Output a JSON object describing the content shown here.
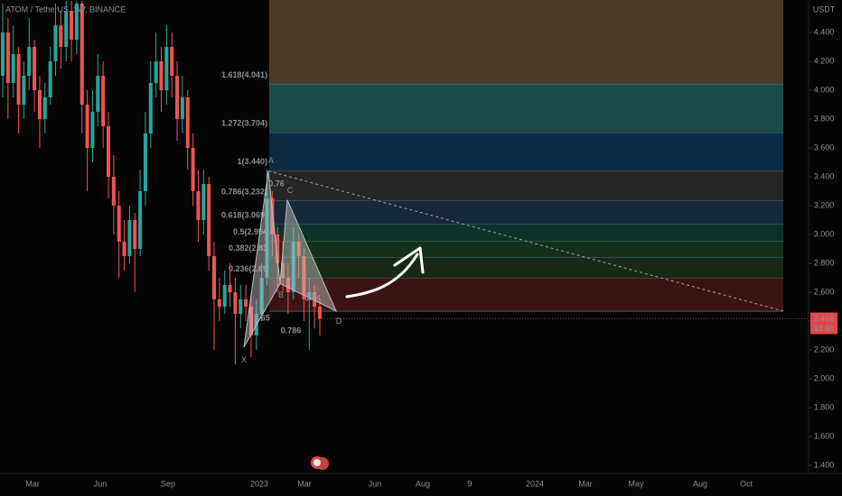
{
  "chart_data": {
    "type": "candlestick",
    "symbol": "ATOM / TetherUS, 1W, BINANCE",
    "currency": "USDT",
    "up_color": "#26a69a",
    "down_color": "#ef5350",
    "open": [
      4.1,
      4.4,
      4.05,
      4.25,
      3.9,
      4.1,
      4.3,
      4.0,
      3.8,
      3.95,
      4.2,
      4.45,
      4.3,
      4.55,
      4.35,
      4.6,
      3.9,
      3.6,
      3.85,
      4.1,
      3.75,
      3.4,
      3.2,
      2.95,
      2.85,
      3.1,
      2.9,
      3.3,
      3.7,
      4.05,
      4.2,
      4.0,
      4.3,
      4.1,
      3.8,
      3.95,
      3.6,
      3.3,
      3.1,
      3.35,
      2.85,
      2.55,
      2.5,
      2.65,
      2.6,
      2.45,
      2.55,
      2.5,
      2.3,
      2.45,
      2.7,
      3.25,
      3.0,
      2.8,
      2.7,
      2.6,
      2.95,
      2.85,
      2.55,
      2.6,
      2.5
    ],
    "high": [
      4.6,
      4.5,
      4.45,
      4.3,
      4.2,
      4.5,
      4.35,
      4.1,
      4.05,
      4.3,
      4.6,
      4.55,
      4.62,
      4.62,
      4.62,
      4.62,
      4.0,
      4.0,
      4.25,
      4.2,
      3.85,
      3.55,
      3.3,
      3.1,
      3.2,
      3.15,
      3.45,
      3.85,
      4.2,
      4.4,
      4.3,
      4.45,
      4.4,
      4.2,
      4.1,
      4.0,
      3.7,
      3.45,
      3.45,
      3.4,
      2.95,
      2.7,
      2.75,
      2.8,
      2.7,
      2.65,
      2.65,
      2.6,
      2.55,
      2.8,
      3.45,
      3.3,
      3.05,
      2.95,
      2.8,
      3.05,
      3.0,
      2.9,
      2.7,
      2.65,
      2.55
    ],
    "low": [
      3.95,
      3.8,
      3.95,
      3.7,
      3.8,
      4.0,
      3.85,
      3.6,
      3.7,
      3.9,
      4.1,
      4.15,
      4.2,
      4.2,
      4.25,
      3.7,
      3.3,
      3.5,
      3.75,
      3.6,
      3.25,
      3.0,
      2.7,
      2.75,
      2.8,
      2.6,
      2.85,
      3.2,
      3.6,
      3.95,
      3.85,
      3.9,
      3.95,
      3.65,
      3.7,
      3.45,
      3.2,
      2.95,
      3.0,
      2.75,
      2.2,
      2.4,
      2.45,
      2.5,
      2.1,
      2.35,
      2.4,
      2.15,
      2.2,
      2.4,
      2.65,
      2.85,
      2.6,
      2.6,
      2.45,
      2.55,
      2.7,
      2.4,
      2.2,
      2.35,
      2.3
    ],
    "close": [
      4.4,
      4.05,
      4.25,
      3.9,
      4.1,
      4.3,
      4.0,
      3.8,
      3.95,
      4.2,
      4.45,
      4.3,
      4.55,
      4.35,
      4.6,
      3.9,
      3.6,
      3.85,
      4.1,
      3.75,
      3.4,
      3.2,
      2.95,
      2.85,
      3.1,
      2.9,
      3.3,
      3.7,
      4.05,
      4.2,
      4.0,
      4.3,
      4.1,
      3.8,
      3.95,
      3.6,
      3.3,
      3.1,
      3.35,
      2.85,
      2.55,
      2.5,
      2.65,
      2.6,
      2.45,
      2.55,
      2.5,
      2.3,
      2.45,
      2.7,
      3.25,
      3.0,
      2.8,
      2.7,
      2.6,
      2.95,
      2.85,
      2.55,
      2.6,
      2.5,
      2.416
    ],
    "ylim": [
      1.344,
      4.625
    ],
    "yticks": [
      {
        "value": 1.4,
        "label": "1.400"
      },
      {
        "value": 1.6,
        "label": "1.600"
      },
      {
        "value": 1.8,
        "label": "1.800"
      },
      {
        "value": 2.0,
        "label": "2.000"
      },
      {
        "value": 2.2,
        "label": "2.200"
      },
      {
        "value": 2.4,
        "label": "2.400"
      },
      {
        "value": 2.6,
        "label": "2.600"
      },
      {
        "value": 2.8,
        "label": "2.800"
      },
      {
        "value": 3.0,
        "label": "3.000"
      },
      {
        "value": 3.2,
        "label": "3.200"
      },
      {
        "value": 3.4,
        "label": "3.400"
      },
      {
        "value": 3.6,
        "label": "3.600"
      },
      {
        "value": 3.8,
        "label": "3.800"
      },
      {
        "value": 4.0,
        "label": "4.000"
      },
      {
        "value": 4.2,
        "label": "4.200"
      },
      {
        "value": 4.4,
        "label": "4.400"
      }
    ],
    "time_labels": [
      "Mar",
      "Jun",
      "Sep",
      "2023",
      "Mar",
      "Jun",
      "Aug",
      "9",
      "2024",
      "Mar",
      "May",
      "Aug",
      "Oct"
    ],
    "fib_levels": [
      {
        "value": 4.041,
        "label": "1.618(4.041)",
        "color": "#4a3a28",
        "text_color": "#5b9cf6"
      },
      {
        "value": 3.704,
        "label": "1.272(3.704)",
        "color": "#1c4a4a",
        "text_color": "#8bc34a"
      },
      {
        "value": 3.44,
        "label": "1(3.440)",
        "color": "#0c2a42",
        "text_color": "#9e9e9e"
      },
      {
        "value": 3.232,
        "label": "0.786(3.232)",
        "color": "#262626",
        "text_color": "#5b9cf6"
      },
      {
        "value": 3.069,
        "label": "0.618(3.069)",
        "color": "#16293a",
        "text_color": "#26a69a"
      },
      {
        "value": 2.954,
        "label": "0.5(2.954",
        "color": "#0c3328",
        "text_color": "#8bc34a"
      },
      {
        "value": 2.839,
        "label": "0.382(2.83",
        "color": "#14301c",
        "text_color": "#8bc34a"
      },
      {
        "value": 2.697,
        "label": "0.236(2.69",
        "color": "#182a16",
        "text_color": "#ef5350"
      },
      {
        "value": 2.468,
        "color": "#3a1414"
      }
    ],
    "pattern": {
      "labels": [
        "X",
        "A",
        "B",
        "C",
        "D"
      ],
      "prices": [
        2.22,
        3.44,
        2.66,
        3.24,
        2.47
      ]
    },
    "ratio_labels": [
      "0.65",
      "0.76",
      "0.786",
      "0.74"
    ],
    "last_price": 2.416,
    "countdown": "1d 6h"
  }
}
